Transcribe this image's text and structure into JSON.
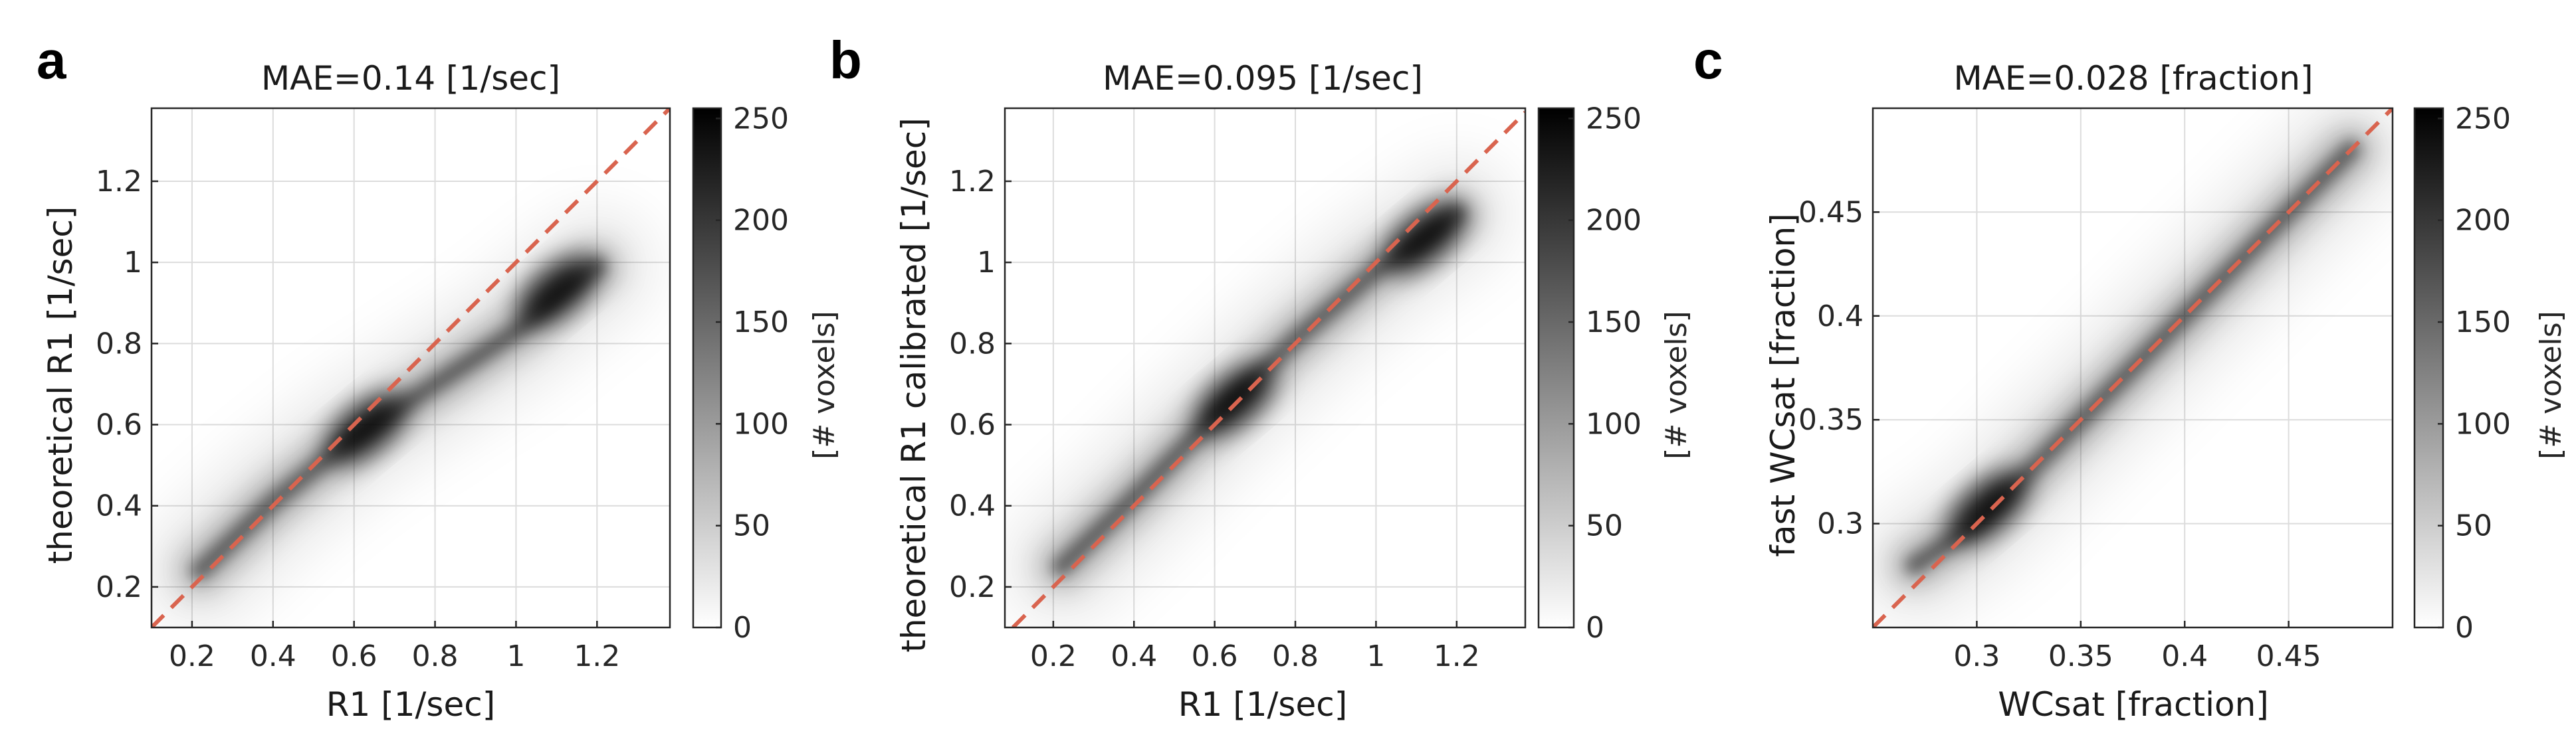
{
  "chart_data": [
    {
      "type": "heatmap",
      "panel": "a",
      "title": "MAE=0.14 [1/sec]",
      "xlabel": "R1 [1/sec]",
      "ylabel": "theoretical R1 [1/sec]",
      "xlim": [
        0.1,
        1.38
      ],
      "ylim": [
        0.1,
        1.38
      ],
      "xticks": [
        0.2,
        0.4,
        0.6,
        0.8,
        1,
        1.2
      ],
      "xtick_labels": [
        "0.2",
        "0.4",
        "0.6",
        "0.8",
        "1",
        "1.2"
      ],
      "yticks": [
        0.2,
        0.4,
        0.6,
        0.8,
        1,
        1.2
      ],
      "ytick_labels": [
        "0.2",
        "0.4",
        "0.6",
        "0.8",
        "1",
        "1.2"
      ],
      "grid": true,
      "identity_line": true,
      "density_trend": {
        "x": [
          0.22,
          0.4,
          0.6,
          0.8,
          1.0,
          1.12,
          1.2
        ],
        "y": [
          0.24,
          0.41,
          0.57,
          0.7,
          0.83,
          0.93,
          0.99
        ]
      },
      "density_peaks": [
        [
          0.63,
          0.59
        ],
        [
          1.1,
          0.93
        ]
      ],
      "colorbar": {
        "label": "[# voxels]",
        "range": [
          0,
          255
        ],
        "ticks": [
          0,
          50,
          100,
          150,
          200,
          250
        ],
        "tick_labels": [
          "0",
          "50",
          "100",
          "150",
          "200",
          "250"
        ],
        "colormap": "gray-reversed"
      },
      "colors": {
        "identity": "#d9644f",
        "grid": "#dcdcdc"
      }
    },
    {
      "type": "heatmap",
      "panel": "b",
      "title": "MAE=0.095 [1/sec]",
      "xlabel": "R1 [1/sec]",
      "ylabel": "theoretical R1 calibrated [1/sec]",
      "xlim": [
        0.08,
        1.37
      ],
      "ylim": [
        0.1,
        1.38
      ],
      "xticks": [
        0.2,
        0.4,
        0.6,
        0.8,
        1,
        1.2
      ],
      "xtick_labels": [
        "0.2",
        "0.4",
        "0.6",
        "0.8",
        "1",
        "1.2"
      ],
      "yticks": [
        0.2,
        0.4,
        0.6,
        0.8,
        1,
        1.2
      ],
      "ytick_labels": [
        "0.2",
        "0.4",
        "0.6",
        "0.8",
        "1",
        "1.2"
      ],
      "grid": true,
      "identity_line": true,
      "density_trend": {
        "x": [
          0.22,
          0.4,
          0.6,
          0.8,
          1.0,
          1.12,
          1.2
        ],
        "y": [
          0.25,
          0.42,
          0.62,
          0.81,
          0.98,
          1.06,
          1.12
        ]
      },
      "density_peaks": [
        [
          0.65,
          0.66
        ],
        [
          1.12,
          1.06
        ]
      ],
      "colorbar": {
        "label": "[# voxels]",
        "range": [
          0,
          255
        ],
        "ticks": [
          0,
          50,
          100,
          150,
          200,
          250
        ],
        "tick_labels": [
          "0",
          "50",
          "100",
          "150",
          "200",
          "250"
        ],
        "colormap": "gray-reversed"
      },
      "colors": {
        "identity": "#d9644f",
        "grid": "#dcdcdc"
      }
    },
    {
      "type": "heatmap",
      "panel": "c",
      "title": "MAE=0.028 [fraction]",
      "xlabel": "WCsat [fraction]",
      "ylabel": "fast WCsat [fraction]",
      "xlim": [
        0.25,
        0.5
      ],
      "ylim": [
        0.25,
        0.5
      ],
      "xticks": [
        0.3,
        0.35,
        0.4,
        0.45
      ],
      "xtick_labels": [
        "0.3",
        "0.35",
        "0.4",
        "0.45"
      ],
      "yticks": [
        0.3,
        0.35,
        0.4,
        0.45
      ],
      "ytick_labels": [
        "0.3",
        "0.35",
        "0.4",
        "0.45"
      ],
      "grid": true,
      "identity_line": true,
      "density_trend": {
        "x": [
          0.27,
          0.3,
          0.35,
          0.4,
          0.45,
          0.48
        ],
        "y": [
          0.28,
          0.3,
          0.35,
          0.4,
          0.45,
          0.48
        ]
      },
      "density_peaks": [
        [
          0.305,
          0.308
        ]
      ],
      "colorbar": {
        "label": "[# voxels]",
        "range": [
          0,
          255
        ],
        "ticks": [
          0,
          50,
          100,
          150,
          200,
          250
        ],
        "tick_labels": [
          "0",
          "50",
          "100",
          "150",
          "200",
          "250"
        ],
        "colormap": "gray-reversed"
      },
      "colors": {
        "identity": "#d9644f",
        "grid": "#dcdcdc"
      }
    }
  ]
}
